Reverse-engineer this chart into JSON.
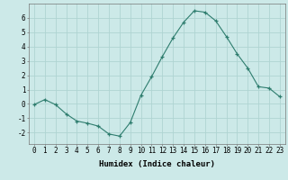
{
  "x": [
    0,
    1,
    2,
    3,
    4,
    5,
    6,
    7,
    8,
    9,
    10,
    11,
    12,
    13,
    14,
    15,
    16,
    17,
    18,
    19,
    20,
    21,
    22,
    23
  ],
  "y": [
    -0.05,
    0.3,
    -0.05,
    -0.7,
    -1.2,
    -1.35,
    -1.55,
    -2.1,
    -2.25,
    -1.3,
    0.6,
    1.9,
    3.3,
    4.6,
    5.7,
    6.5,
    6.4,
    5.8,
    4.7,
    3.5,
    2.5,
    1.2,
    1.1,
    0.5
  ],
  "xlabel": "Humidex (Indice chaleur)",
  "xlim": [
    -0.5,
    23.5
  ],
  "ylim": [
    -2.8,
    7.0
  ],
  "yticks": [
    -2,
    -1,
    0,
    1,
    2,
    3,
    4,
    5,
    6
  ],
  "xticks": [
    0,
    1,
    2,
    3,
    4,
    5,
    6,
    7,
    8,
    9,
    10,
    11,
    12,
    13,
    14,
    15,
    16,
    17,
    18,
    19,
    20,
    21,
    22,
    23
  ],
  "line_color": "#2e7d6e",
  "marker": "+",
  "bg_color": "#cce9e8",
  "grid_color": "#afd4d2",
  "label_fontsize": 6.5,
  "tick_fontsize": 5.5
}
